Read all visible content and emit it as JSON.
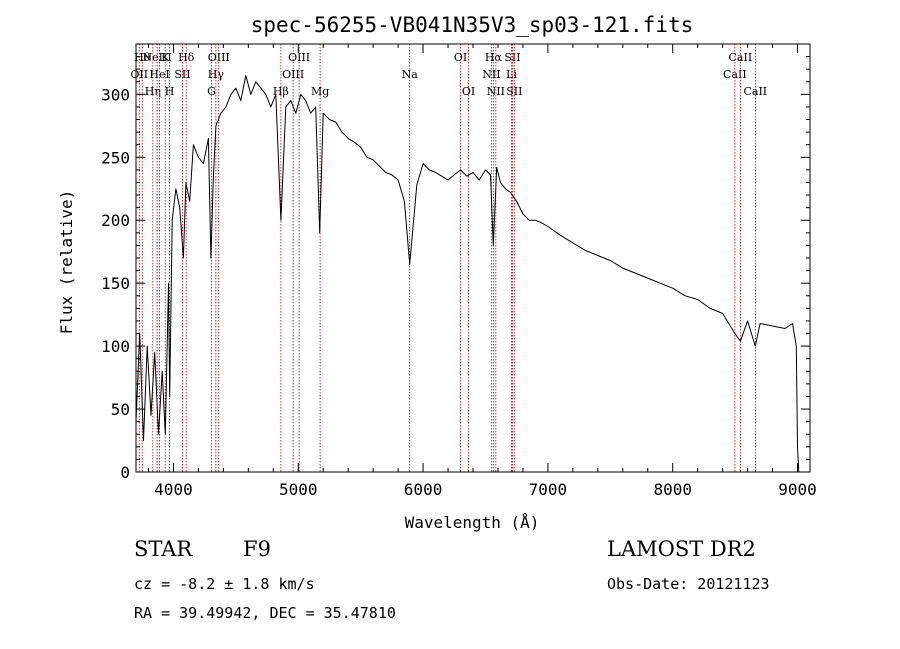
{
  "chart_data": {
    "type": "line",
    "title": "spec-56255-VB041N35V3_sp03-121.fits",
    "xlabel": "Wavelength (Å)",
    "ylabel": "Flux (relative)",
    "xlim": [
      3700,
      9100
    ],
    "ylim": [
      0,
      340
    ],
    "xticks": [
      4000,
      5000,
      6000,
      7000,
      8000,
      9000
    ],
    "yticks": [
      0,
      50,
      100,
      150,
      200,
      250,
      300
    ],
    "grid": false,
    "series": [
      {
        "x": [
          3700,
          3730,
          3760,
          3790,
          3820,
          3850,
          3880,
          3910,
          3935,
          3960,
          3970,
          3990,
          4020,
          4050,
          4080,
          4100,
          4130,
          4160,
          4200,
          4240,
          4280,
          4300,
          4320,
          4340,
          4380,
          4420,
          4460,
          4500,
          4540,
          4580,
          4620,
          4660,
          4700,
          4740,
          4780,
          4820,
          4861,
          4900,
          4940,
          4980,
          5020,
          5060,
          5100,
          5140,
          5172,
          5200,
          5250,
          5300,
          5350,
          5400,
          5450,
          5500,
          5550,
          5600,
          5650,
          5700,
          5750,
          5800,
          5850,
          5893,
          5950,
          6000,
          6050,
          6100,
          6150,
          6200,
          6250,
          6300,
          6350,
          6400,
          6450,
          6500,
          6540,
          6563,
          6590,
          6620,
          6660,
          6700,
          6750,
          6800,
          6850,
          6900,
          6950,
          7000,
          7100,
          7200,
          7300,
          7400,
          7500,
          7600,
          7700,
          7800,
          7900,
          8000,
          8100,
          8200,
          8300,
          8400,
          8498,
          8542,
          8600,
          8662,
          8700,
          8800,
          8900,
          8960,
          8990,
          9000,
          9010
        ],
        "y": [
          40,
          110,
          25,
          100,
          45,
          95,
          30,
          80,
          30,
          150,
          60,
          200,
          225,
          210,
          170,
          230,
          215,
          260,
          250,
          245,
          265,
          170,
          235,
          275,
          285,
          290,
          300,
          305,
          295,
          315,
          300,
          310,
          305,
          300,
          290,
          300,
          200,
          290,
          295,
          285,
          300,
          295,
          285,
          290,
          190,
          285,
          280,
          278,
          270,
          265,
          262,
          258,
          250,
          248,
          243,
          238,
          236,
          232,
          215,
          165,
          228,
          245,
          240,
          238,
          235,
          232,
          236,
          240,
          235,
          238,
          232,
          240,
          236,
          180,
          242,
          230,
          225,
          222,
          215,
          205,
          200,
          200,
          198,
          195,
          188,
          182,
          176,
          172,
          168,
          162,
          158,
          154,
          150,
          146,
          140,
          137,
          130,
          126,
          110,
          104,
          120,
          100,
          118,
          116,
          114,
          118,
          100,
          20,
          0
        ]
      }
    ],
    "lines": [
      {
        "x": 3726,
        "label": "OII",
        "row": 2
      },
      {
        "x": 3750,
        "label": "Hθ",
        "row": 1
      },
      {
        "x": 3835,
        "label": "Hη",
        "row": 3
      },
      {
        "x": 3869,
        "label": "NeIII",
        "row": 1
      },
      {
        "x": 3889,
        "label": "HeI",
        "row": 2
      },
      {
        "x": 3934,
        "label": "K",
        "row": 1
      },
      {
        "x": 3969,
        "label": "H",
        "row": 3
      },
      {
        "x": 4072,
        "label": "SII",
        "row": 2
      },
      {
        "x": 4102,
        "label": "Hδ",
        "row": 1
      },
      {
        "x": 4305,
        "label": "G",
        "row": 3
      },
      {
        "x": 4340,
        "label": "Hγ",
        "row": 2
      },
      {
        "x": 4363,
        "label": "OIII",
        "row": 1
      },
      {
        "x": 4861,
        "label": "Hβ",
        "row": 3
      },
      {
        "x": 4959,
        "label": "OIII",
        "row": 2
      },
      {
        "x": 5007,
        "label": "OIII",
        "row": 1
      },
      {
        "x": 5175,
        "label": "Mg",
        "row": 3
      },
      {
        "x": 5893,
        "label": "Na",
        "row": 2
      },
      {
        "x": 6300,
        "label": "OI",
        "row": 1
      },
      {
        "x": 6364,
        "label": "OI",
        "row": 3
      },
      {
        "x": 6548,
        "label": "NII",
        "row": 2
      },
      {
        "x": 6563,
        "label": "Hα",
        "row": 1
      },
      {
        "x": 6583,
        "label": "NII",
        "row": 3
      },
      {
        "x": 6708,
        "label": "Li",
        "row": 2
      },
      {
        "x": 6716,
        "label": "SII",
        "row": 1
      },
      {
        "x": 6731,
        "label": "SII",
        "row": 3
      },
      {
        "x": 8498,
        "label": "CaII",
        "row": 2
      },
      {
        "x": 8542,
        "label": "CaII",
        "row": 1
      },
      {
        "x": 8662,
        "label": "CaII",
        "row": 3
      }
    ]
  },
  "info": {
    "object_class": "STAR",
    "subclass": "F9",
    "survey": "LAMOST DR2",
    "redshift": "cz = -8.2 ± 1.8 km/s",
    "obs_date": "Obs-Date: 20121123",
    "coords": "RA =  39.49942, DEC =  35.47810"
  },
  "colors": {
    "spectrum": "#000000",
    "line_markers": "#c00000",
    "axes": "#000000"
  }
}
